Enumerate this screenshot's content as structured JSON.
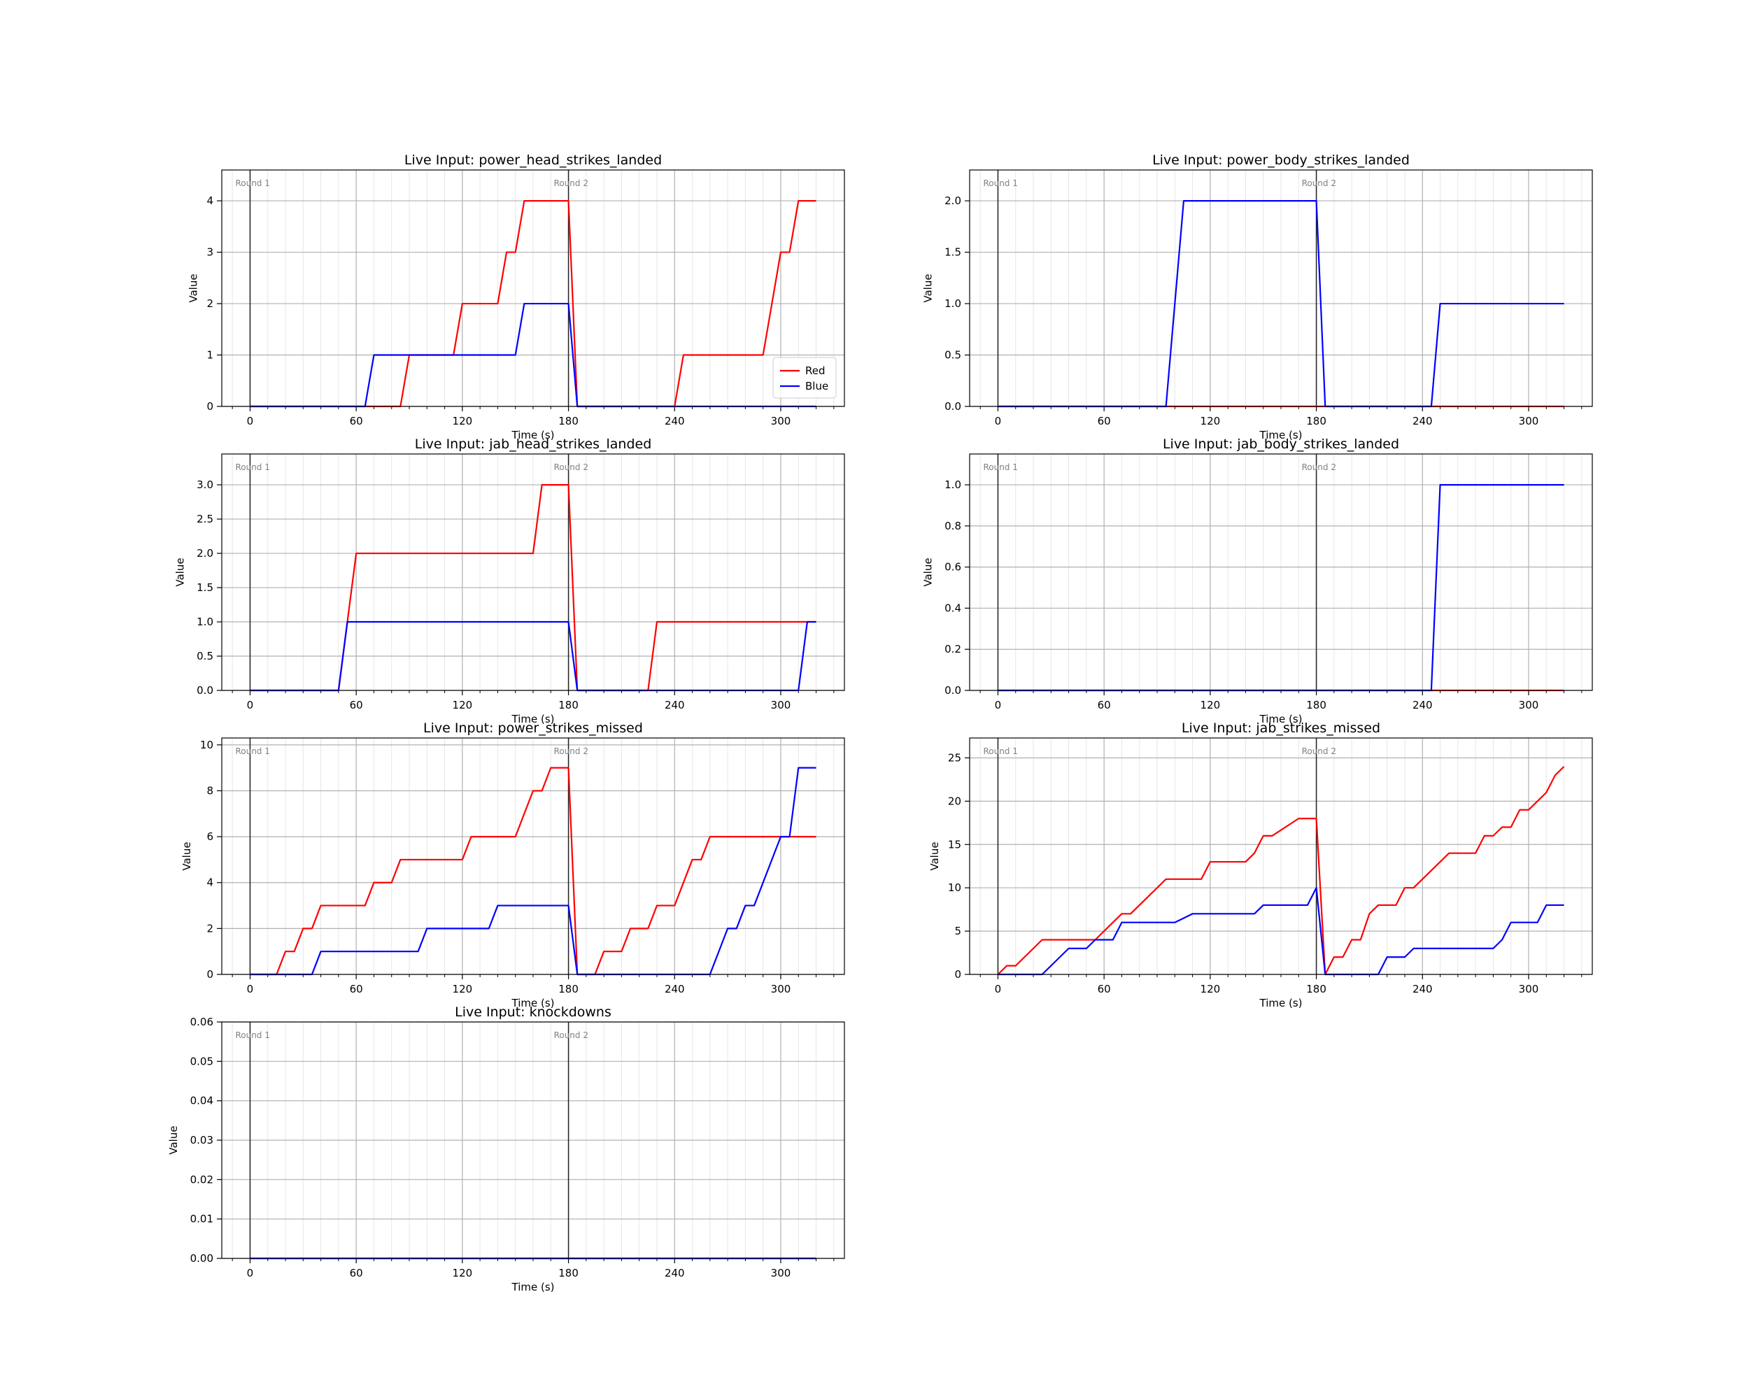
{
  "chart_data": [
    {
      "type": "line",
      "title": "Live Input: power_head_strikes_landed",
      "xlabel": "Time (s)",
      "ylabel": "Value",
      "xlim": [
        -16,
        336
      ],
      "ylim": [
        0,
        4.6
      ],
      "xticks": [
        0,
        60,
        120,
        180,
        240,
        300
      ],
      "yticks": [
        0,
        1,
        2,
        3,
        4
      ],
      "ytick_labels": [
        "0",
        "1",
        "2",
        "3",
        "4"
      ],
      "round_markers": [
        {
          "x": 0,
          "label": "Round 1"
        },
        {
          "x": 180,
          "label": "Round 2"
        }
      ],
      "legend": {
        "placement": "lower right",
        "entries": [
          "Red",
          "Blue"
        ]
      },
      "series": [
        {
          "name": "Red",
          "color": "#ff0000",
          "points": [
            [
              0,
              0
            ],
            [
              85,
              0
            ],
            [
              90,
              1
            ],
            [
              115,
              1
            ],
            [
              120,
              2
            ],
            [
              140,
              2
            ],
            [
              145,
              3
            ],
            [
              150,
              3
            ],
            [
              155,
              4
            ],
            [
              180,
              4
            ],
            [
              185,
              0
            ],
            [
              240,
              0
            ],
            [
              245,
              1
            ],
            [
              290,
              1
            ],
            [
              300,
              3
            ],
            [
              305,
              3
            ],
            [
              310,
              4
            ],
            [
              320,
              4
            ]
          ]
        },
        {
          "name": "Blue",
          "color": "#0000ff",
          "points": [
            [
              0,
              0
            ],
            [
              65,
              0
            ],
            [
              70,
              1
            ],
            [
              150,
              1
            ],
            [
              155,
              2
            ],
            [
              180,
              2
            ],
            [
              185,
              0
            ],
            [
              320,
              0
            ]
          ]
        }
      ]
    },
    {
      "type": "line",
      "title": "Live Input: power_body_strikes_landed",
      "xlabel": "Time (s)",
      "ylabel": "Value",
      "xlim": [
        -16,
        336
      ],
      "ylim": [
        0,
        2.3
      ],
      "xticks": [
        0,
        60,
        120,
        180,
        240,
        300
      ],
      "yticks": [
        0,
        0.5,
        1,
        1.5,
        2
      ],
      "ytick_labels": [
        "0.0",
        "0.5",
        "1.0",
        "1.5",
        "2.0"
      ],
      "round_markers": [
        {
          "x": 0,
          "label": "Round 1"
        },
        {
          "x": 180,
          "label": "Round 2"
        }
      ],
      "series": [
        {
          "name": "",
          "color": "#ff0000",
          "points": [
            [
              0,
              0
            ],
            [
              320,
              0
            ]
          ]
        },
        {
          "name": "",
          "color": "#0000ff",
          "points": [
            [
              0,
              0
            ],
            [
              95,
              0
            ],
            [
              105,
              2
            ],
            [
              180,
              2
            ],
            [
              185,
              0
            ],
            [
              245,
              0
            ],
            [
              250,
              1
            ],
            [
              320,
              1
            ]
          ]
        }
      ]
    },
    {
      "type": "line",
      "title": "Live Input: jab_head_strikes_landed",
      "xlabel": "Time (s)",
      "ylabel": "Value",
      "xlim": [
        -16,
        336
      ],
      "ylim": [
        0,
        3.45
      ],
      "xticks": [
        0,
        60,
        120,
        180,
        240,
        300
      ],
      "yticks": [
        0,
        0.5,
        1,
        1.5,
        2,
        2.5,
        3
      ],
      "ytick_labels": [
        "0.0",
        "0.5",
        "1.0",
        "1.5",
        "2.0",
        "2.5",
        "3.0"
      ],
      "round_markers": [
        {
          "x": 0,
          "label": "Round 1"
        },
        {
          "x": 180,
          "label": "Round 2"
        }
      ],
      "series": [
        {
          "name": "",
          "color": "#ff0000",
          "points": [
            [
              0,
              0
            ],
            [
              50,
              0
            ],
            [
              60,
              2
            ],
            [
              160,
              2
            ],
            [
              165,
              3
            ],
            [
              180,
              3
            ],
            [
              185,
              0
            ],
            [
              225,
              0
            ],
            [
              230,
              1
            ],
            [
              320,
              1
            ]
          ]
        },
        {
          "name": "",
          "color": "#0000ff",
          "points": [
            [
              0,
              0
            ],
            [
              50,
              0
            ],
            [
              55,
              1
            ],
            [
              180,
              1
            ],
            [
              185,
              0
            ],
            [
              310,
              0
            ],
            [
              315,
              1
            ],
            [
              320,
              1
            ]
          ]
        }
      ]
    },
    {
      "type": "line",
      "title": "Live Input: jab_body_strikes_landed",
      "xlabel": "Time (s)",
      "ylabel": "Value",
      "xlim": [
        -16,
        336
      ],
      "ylim": [
        0,
        1.15
      ],
      "xticks": [
        0,
        60,
        120,
        180,
        240,
        300
      ],
      "yticks": [
        0,
        0.2,
        0.4,
        0.6,
        0.8,
        1.0
      ],
      "ytick_labels": [
        "0.0",
        "0.2",
        "0.4",
        "0.6",
        "0.8",
        "1.0"
      ],
      "round_markers": [
        {
          "x": 0,
          "label": "Round 1"
        },
        {
          "x": 180,
          "label": "Round 2"
        }
      ],
      "series": [
        {
          "name": "",
          "color": "#ff0000",
          "points": [
            [
              0,
              0
            ],
            [
              320,
              0
            ]
          ]
        },
        {
          "name": "",
          "color": "#0000ff",
          "points": [
            [
              0,
              0
            ],
            [
              245,
              0
            ],
            [
              250,
              1
            ],
            [
              320,
              1
            ]
          ]
        }
      ]
    },
    {
      "type": "line",
      "title": "Live Input: power_strikes_missed",
      "xlabel": "Time (s)",
      "ylabel": "Value",
      "xlim": [
        -16,
        336
      ],
      "ylim": [
        0,
        10.3
      ],
      "xticks": [
        0,
        60,
        120,
        180,
        240,
        300
      ],
      "yticks": [
        0,
        2,
        4,
        6,
        8,
        10
      ],
      "ytick_labels": [
        "0",
        "2",
        "4",
        "6",
        "8",
        "10"
      ],
      "round_markers": [
        {
          "x": 0,
          "label": "Round 1"
        },
        {
          "x": 180,
          "label": "Round 2"
        }
      ],
      "series": [
        {
          "name": "",
          "color": "#ff0000",
          "points": [
            [
              0,
              0
            ],
            [
              15,
              0
            ],
            [
              20,
              1
            ],
            [
              25,
              1
            ],
            [
              30,
              2
            ],
            [
              35,
              2
            ],
            [
              40,
              3
            ],
            [
              65,
              3
            ],
            [
              70,
              4
            ],
            [
              80,
              4
            ],
            [
              85,
              5
            ],
            [
              120,
              5
            ],
            [
              125,
              6
            ],
            [
              150,
              6
            ],
            [
              160,
              8
            ],
            [
              165,
              8
            ],
            [
              170,
              9
            ],
            [
              180,
              9
            ],
            [
              185,
              0
            ],
            [
              195,
              0
            ],
            [
              200,
              1
            ],
            [
              210,
              1
            ],
            [
              215,
              2
            ],
            [
              225,
              2
            ],
            [
              230,
              3
            ],
            [
              240,
              3
            ],
            [
              250,
              5
            ],
            [
              255,
              5
            ],
            [
              260,
              6
            ],
            [
              320,
              6
            ]
          ]
        },
        {
          "name": "",
          "color": "#0000ff",
          "points": [
            [
              0,
              0
            ],
            [
              35,
              0
            ],
            [
              40,
              1
            ],
            [
              95,
              1
            ],
            [
              100,
              2
            ],
            [
              135,
              2
            ],
            [
              140,
              3
            ],
            [
              180,
              3
            ],
            [
              185,
              0
            ],
            [
              260,
              0
            ],
            [
              270,
              2
            ],
            [
              275,
              2
            ],
            [
              280,
              3
            ],
            [
              285,
              3
            ],
            [
              300,
              6
            ],
            [
              305,
              6
            ],
            [
              310,
              9
            ],
            [
              320,
              9
            ]
          ]
        }
      ]
    },
    {
      "type": "line",
      "title": "Live Input: jab_strikes_missed",
      "xlabel": "Time (s)",
      "ylabel": "Value",
      "xlim": [
        -16,
        336
      ],
      "ylim": [
        0,
        27.3
      ],
      "xticks": [
        0,
        60,
        120,
        180,
        240,
        300
      ],
      "yticks": [
        0,
        5,
        10,
        15,
        20,
        25
      ],
      "ytick_labels": [
        "0",
        "5",
        "10",
        "15",
        "20",
        "25"
      ],
      "round_markers": [
        {
          "x": 0,
          "label": "Round 1"
        },
        {
          "x": 180,
          "label": "Round 2"
        }
      ],
      "series": [
        {
          "name": "",
          "color": "#ff0000",
          "points": [
            [
              0,
              0
            ],
            [
              5,
              1
            ],
            [
              10,
              1
            ],
            [
              25,
              4
            ],
            [
              55,
              4
            ],
            [
              70,
              7
            ],
            [
              75,
              7
            ],
            [
              85,
              9
            ],
            [
              95,
              11
            ],
            [
              115,
              11
            ],
            [
              120,
              13
            ],
            [
              140,
              13
            ],
            [
              145,
              14
            ],
            [
              150,
              16
            ],
            [
              155,
              16
            ],
            [
              170,
              18
            ],
            [
              180,
              18
            ],
            [
              185,
              0
            ],
            [
              190,
              2
            ],
            [
              195,
              2
            ],
            [
              200,
              4
            ],
            [
              205,
              4
            ],
            [
              210,
              7
            ],
            [
              215,
              8
            ],
            [
              225,
              8
            ],
            [
              230,
              10
            ],
            [
              235,
              10
            ],
            [
              255,
              14
            ],
            [
              270,
              14
            ],
            [
              275,
              16
            ],
            [
              280,
              16
            ],
            [
              285,
              17
            ],
            [
              290,
              17
            ],
            [
              295,
              19
            ],
            [
              300,
              19
            ],
            [
              310,
              21
            ],
            [
              315,
              23
            ],
            [
              320,
              24
            ]
          ]
        },
        {
          "name": "",
          "color": "#0000ff",
          "points": [
            [
              0,
              0
            ],
            [
              25,
              0
            ],
            [
              40,
              3
            ],
            [
              50,
              3
            ],
            [
              55,
              4
            ],
            [
              65,
              4
            ],
            [
              70,
              6
            ],
            [
              100,
              6
            ],
            [
              110,
              7
            ],
            [
              145,
              7
            ],
            [
              150,
              8
            ],
            [
              175,
              8
            ],
            [
              180,
              10
            ],
            [
              185,
              0
            ],
            [
              215,
              0
            ],
            [
              220,
              2
            ],
            [
              230,
              2
            ],
            [
              235,
              3
            ],
            [
              280,
              3
            ],
            [
              285,
              4
            ],
            [
              290,
              6
            ],
            [
              305,
              6
            ],
            [
              310,
              8
            ],
            [
              320,
              8
            ]
          ]
        }
      ]
    },
    {
      "type": "line",
      "title": "Live Input: knockdowns",
      "xlabel": "Time (s)",
      "ylabel": "Value",
      "xlim": [
        -16,
        336
      ],
      "ylim": [
        0,
        0.06
      ],
      "xticks": [
        0,
        60,
        120,
        180,
        240,
        300
      ],
      "yticks": [
        0,
        0.01,
        0.02,
        0.03,
        0.04,
        0.05,
        0.06
      ],
      "ytick_labels": [
        "0.00",
        "0.01",
        "0.02",
        "0.03",
        "0.04",
        "0.05",
        "0.06"
      ],
      "round_markers": [
        {
          "x": 0,
          "label": "Round 1"
        },
        {
          "x": 180,
          "label": "Round 2"
        }
      ],
      "series": [
        {
          "name": "",
          "color": "#ff0000",
          "points": [
            [
              0,
              0
            ],
            [
              320,
              0
            ]
          ]
        },
        {
          "name": "",
          "color": "#0000ff",
          "points": [
            [
              0,
              0
            ],
            [
              320,
              0
            ]
          ]
        }
      ]
    }
  ]
}
